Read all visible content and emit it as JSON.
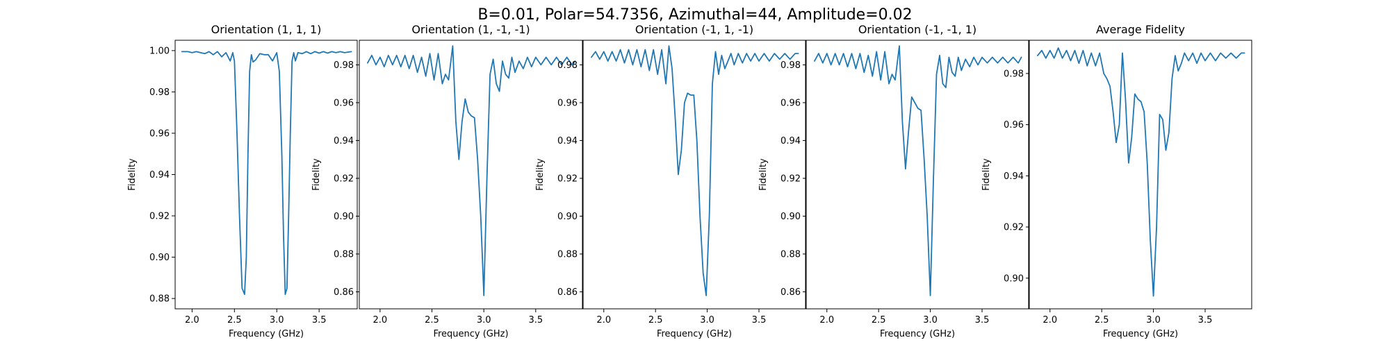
{
  "figure": {
    "suptitle": "B=0.01, Polar=54.7356, Azimuthal=44, Amplitude=0.02",
    "series_color": "#1f77b4"
  },
  "chart_data": [
    {
      "type": "line",
      "title": "Orientation (1, 1, 1)",
      "xlabel": "Frequency (GHz)",
      "ylabel": "Fidelity",
      "xlim": [
        1.8,
        3.95
      ],
      "ylim": [
        0.875,
        1.005
      ],
      "xticks": [
        2.0,
        2.5,
        3.0,
        3.5
      ],
      "xtick_labels": [
        "2.0",
        "2.5",
        "3.0",
        "3.5"
      ],
      "yticks": [
        0.88,
        0.9,
        0.92,
        0.94,
        0.96,
        0.98,
        1.0
      ],
      "ytick_labels": [
        "0.88",
        "0.90",
        "0.92",
        "0.94",
        "0.96",
        "0.98",
        "1.00"
      ],
      "x": [
        1.88,
        1.95,
        2.0,
        2.05,
        2.1,
        2.15,
        2.2,
        2.25,
        2.3,
        2.35,
        2.4,
        2.45,
        2.48,
        2.5,
        2.53,
        2.56,
        2.59,
        2.62,
        2.64,
        2.66,
        2.68,
        2.7,
        2.72,
        2.75,
        2.8,
        2.85,
        2.9,
        2.95,
        3.0,
        3.03,
        3.06,
        3.08,
        3.1,
        3.12,
        3.14,
        3.16,
        3.18,
        3.2,
        3.22,
        3.25,
        3.3,
        3.35,
        3.4,
        3.45,
        3.5,
        3.55,
        3.6,
        3.65,
        3.7,
        3.75,
        3.8,
        3.88
      ],
      "values": [
        0.9995,
        0.9995,
        0.999,
        0.9995,
        0.999,
        0.9985,
        0.9995,
        0.998,
        0.9995,
        0.997,
        0.999,
        0.995,
        0.999,
        0.995,
        0.96,
        0.92,
        0.885,
        0.882,
        0.9,
        0.95,
        0.99,
        0.998,
        0.9945,
        0.9955,
        0.9985,
        0.998,
        0.998,
        0.995,
        0.999,
        0.99,
        0.95,
        0.91,
        0.882,
        0.885,
        0.92,
        0.96,
        0.995,
        0.999,
        0.995,
        0.999,
        0.9985,
        0.9995,
        0.9985,
        0.9995,
        0.9988,
        0.9995,
        0.9988,
        0.9995,
        0.999,
        0.9995,
        0.999,
        0.9995
      ]
    },
    {
      "type": "line",
      "title": "Orientation (1, -1, -1)",
      "xlabel": "Frequency (GHz)",
      "ylabel": "Fidelity",
      "xlim": [
        1.8,
        3.95
      ],
      "ylim": [
        0.851,
        0.993
      ],
      "xticks": [
        2.0,
        2.5,
        3.0,
        3.5
      ],
      "xtick_labels": [
        "2.0",
        "2.5",
        "3.0",
        "3.5"
      ],
      "yticks": [
        0.86,
        0.88,
        0.9,
        0.92,
        0.94,
        0.96,
        0.98
      ],
      "ytick_labels": [
        "0.86",
        "0.88",
        "0.90",
        "0.92",
        "0.94",
        "0.96",
        "0.98"
      ],
      "x": [
        1.88,
        1.92,
        1.96,
        2.0,
        2.04,
        2.08,
        2.12,
        2.16,
        2.2,
        2.24,
        2.28,
        2.32,
        2.36,
        2.4,
        2.44,
        2.48,
        2.52,
        2.56,
        2.6,
        2.63,
        2.66,
        2.7,
        2.73,
        2.76,
        2.79,
        2.82,
        2.85,
        2.88,
        2.91,
        2.94,
        2.97,
        3.0,
        3.03,
        3.06,
        3.09,
        3.12,
        3.15,
        3.18,
        3.21,
        3.24,
        3.27,
        3.3,
        3.34,
        3.38,
        3.42,
        3.46,
        3.5,
        3.55,
        3.6,
        3.65,
        3.7,
        3.75,
        3.8,
        3.85,
        3.88
      ],
      "values": [
        0.981,
        0.985,
        0.98,
        0.984,
        0.979,
        0.985,
        0.98,
        0.985,
        0.979,
        0.985,
        0.978,
        0.985,
        0.976,
        0.984,
        0.974,
        0.986,
        0.972,
        0.986,
        0.97,
        0.975,
        0.972,
        0.99,
        0.95,
        0.93,
        0.95,
        0.962,
        0.955,
        0.953,
        0.952,
        0.93,
        0.9,
        0.858,
        0.92,
        0.975,
        0.983,
        0.97,
        0.966,
        0.982,
        0.975,
        0.973,
        0.984,
        0.976,
        0.982,
        0.978,
        0.984,
        0.979,
        0.984,
        0.98,
        0.984,
        0.98,
        0.984,
        0.98,
        0.984,
        0.98,
        0.982
      ]
    },
    {
      "type": "line",
      "title": "Orientation (-1, 1, -1)",
      "xlabel": "Frequency (GHz)",
      "ylabel": "Fidelity",
      "xlim": [
        1.8,
        3.95
      ],
      "ylim": [
        0.851,
        0.993
      ],
      "xticks": [
        2.0,
        2.5,
        3.0,
        3.5
      ],
      "xtick_labels": [
        "2.0",
        "2.5",
        "3.0",
        "3.5"
      ],
      "yticks": [
        0.86,
        0.88,
        0.9,
        0.92,
        0.94,
        0.96,
        0.98
      ],
      "ytick_labels": [
        "0.86",
        "0.88",
        "0.90",
        "0.92",
        "0.94",
        "0.96",
        "0.98"
      ],
      "x": [
        1.88,
        1.92,
        1.96,
        2.0,
        2.04,
        2.08,
        2.12,
        2.16,
        2.2,
        2.24,
        2.28,
        2.32,
        2.36,
        2.4,
        2.44,
        2.48,
        2.52,
        2.56,
        2.6,
        2.63,
        2.66,
        2.69,
        2.72,
        2.75,
        2.78,
        2.81,
        2.84,
        2.87,
        2.9,
        2.93,
        2.96,
        2.99,
        3.02,
        3.05,
        3.08,
        3.11,
        3.14,
        3.17,
        3.2,
        3.23,
        3.26,
        3.3,
        3.34,
        3.38,
        3.42,
        3.46,
        3.5,
        3.55,
        3.6,
        3.65,
        3.7,
        3.75,
        3.8,
        3.85,
        3.88
      ],
      "values": [
        0.984,
        0.987,
        0.983,
        0.987,
        0.982,
        0.987,
        0.982,
        0.988,
        0.981,
        0.988,
        0.98,
        0.988,
        0.979,
        0.988,
        0.977,
        0.988,
        0.975,
        0.988,
        0.97,
        0.99,
        0.978,
        0.952,
        0.922,
        0.935,
        0.96,
        0.965,
        0.964,
        0.964,
        0.94,
        0.9,
        0.87,
        0.858,
        0.9,
        0.97,
        0.987,
        0.975,
        0.985,
        0.978,
        0.982,
        0.986,
        0.98,
        0.986,
        0.981,
        0.986,
        0.982,
        0.986,
        0.982,
        0.986,
        0.982,
        0.986,
        0.983,
        0.986,
        0.983,
        0.986,
        0.986
      ]
    },
    {
      "type": "line",
      "title": "Orientation (-1, -1, 1)",
      "xlabel": "Frequency (GHz)",
      "ylabel": "Fidelity",
      "xlim": [
        1.8,
        3.95
      ],
      "ylim": [
        0.851,
        0.993
      ],
      "xticks": [
        2.0,
        2.5,
        3.0,
        3.5
      ],
      "xtick_labels": [
        "2.0",
        "2.5",
        "3.0",
        "3.5"
      ],
      "yticks": [
        0.86,
        0.88,
        0.9,
        0.92,
        0.94,
        0.96,
        0.98
      ],
      "ytick_labels": [
        "0.86",
        "0.88",
        "0.90",
        "0.92",
        "0.94",
        "0.96",
        "0.98"
      ],
      "x": [
        1.88,
        1.92,
        1.96,
        2.0,
        2.04,
        2.08,
        2.12,
        2.16,
        2.2,
        2.24,
        2.28,
        2.32,
        2.36,
        2.4,
        2.44,
        2.48,
        2.52,
        2.56,
        2.6,
        2.63,
        2.66,
        2.7,
        2.73,
        2.76,
        2.79,
        2.82,
        2.85,
        2.88,
        2.91,
        2.94,
        2.97,
        3.0,
        3.03,
        3.06,
        3.09,
        3.12,
        3.15,
        3.18,
        3.21,
        3.24,
        3.27,
        3.3,
        3.34,
        3.38,
        3.42,
        3.46,
        3.5,
        3.55,
        3.6,
        3.65,
        3.7,
        3.75,
        3.8,
        3.85,
        3.88
      ],
      "values": [
        0.982,
        0.986,
        0.981,
        0.986,
        0.98,
        0.986,
        0.98,
        0.986,
        0.979,
        0.986,
        0.978,
        0.986,
        0.976,
        0.985,
        0.974,
        0.987,
        0.972,
        0.987,
        0.97,
        0.975,
        0.972,
        0.99,
        0.95,
        0.925,
        0.945,
        0.963,
        0.96,
        0.957,
        0.956,
        0.93,
        0.9,
        0.858,
        0.92,
        0.975,
        0.985,
        0.97,
        0.968,
        0.984,
        0.976,
        0.974,
        0.984,
        0.977,
        0.983,
        0.979,
        0.984,
        0.98,
        0.984,
        0.981,
        0.984,
        0.981,
        0.984,
        0.981,
        0.984,
        0.981,
        0.984
      ]
    },
    {
      "type": "line",
      "title": "Average Fidelity",
      "xlabel": "Frequency (GHz)",
      "ylabel": "Fidelity",
      "xlim": [
        1.8,
        3.95
      ],
      "ylim": [
        0.888,
        0.993
      ],
      "xticks": [
        2.0,
        2.5,
        3.0,
        3.5
      ],
      "xtick_labels": [
        "2.0",
        "2.5",
        "3.0",
        "3.5"
      ],
      "yticks": [
        0.9,
        0.92,
        0.94,
        0.96,
        0.98
      ],
      "ytick_labels": [
        "0.90",
        "0.92",
        "0.94",
        "0.96",
        "0.98"
      ],
      "x": [
        1.88,
        1.92,
        1.96,
        2.0,
        2.04,
        2.08,
        2.12,
        2.16,
        2.2,
        2.24,
        2.28,
        2.32,
        2.36,
        2.4,
        2.44,
        2.48,
        2.52,
        2.55,
        2.58,
        2.61,
        2.64,
        2.67,
        2.7,
        2.73,
        2.76,
        2.79,
        2.82,
        2.85,
        2.88,
        2.91,
        2.94,
        2.97,
        3.0,
        3.03,
        3.06,
        3.09,
        3.12,
        3.15,
        3.18,
        3.21,
        3.24,
        3.27,
        3.3,
        3.34,
        3.38,
        3.42,
        3.46,
        3.5,
        3.55,
        3.6,
        3.65,
        3.7,
        3.75,
        3.8,
        3.85,
        3.88
      ],
      "values": [
        0.987,
        0.989,
        0.986,
        0.989,
        0.986,
        0.99,
        0.986,
        0.989,
        0.985,
        0.989,
        0.984,
        0.989,
        0.983,
        0.988,
        0.983,
        0.988,
        0.98,
        0.978,
        0.975,
        0.965,
        0.953,
        0.96,
        0.988,
        0.97,
        0.945,
        0.955,
        0.972,
        0.97,
        0.969,
        0.965,
        0.945,
        0.915,
        0.893,
        0.92,
        0.964,
        0.962,
        0.95,
        0.957,
        0.978,
        0.987,
        0.981,
        0.984,
        0.988,
        0.985,
        0.988,
        0.984,
        0.988,
        0.985,
        0.988,
        0.985,
        0.988,
        0.986,
        0.988,
        0.986,
        0.988,
        0.988
      ]
    }
  ]
}
